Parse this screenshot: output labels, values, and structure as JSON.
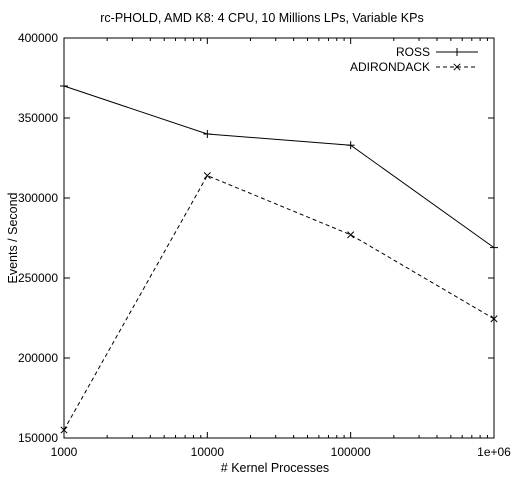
{
  "chart_data": {
    "type": "line",
    "title": "rc-PHOLD, AMD K8:  4 CPU, 10 Millions LPs, Variable KPs",
    "xlabel": "# Kernel Processes",
    "ylabel": "Events / Second",
    "x_scale": "log",
    "x": [
      1000,
      10000,
      100000,
      1000000
    ],
    "x_tick_labels": [
      "1000",
      "10000",
      "100000",
      "1e+06"
    ],
    "xlim": [
      1000,
      1000000
    ],
    "ylim": [
      150000,
      400000
    ],
    "y_ticks": [
      150000,
      200000,
      250000,
      300000,
      350000,
      400000
    ],
    "y_tick_labels": [
      "150000",
      "200000",
      "250000",
      "300000",
      "350000",
      "400000"
    ],
    "grid": false,
    "legend_position": "top-right",
    "series": [
      {
        "name": "ROSS",
        "values": [
          370000,
          340000,
          333000,
          269000
        ],
        "marker": "plus",
        "line_style": "solid",
        "color": "#000000"
      },
      {
        "name": "ADIRONDACK",
        "values": [
          155000,
          314000,
          277000,
          224500
        ],
        "marker": "cross",
        "line_style": "dashed",
        "color": "#000000"
      }
    ]
  }
}
